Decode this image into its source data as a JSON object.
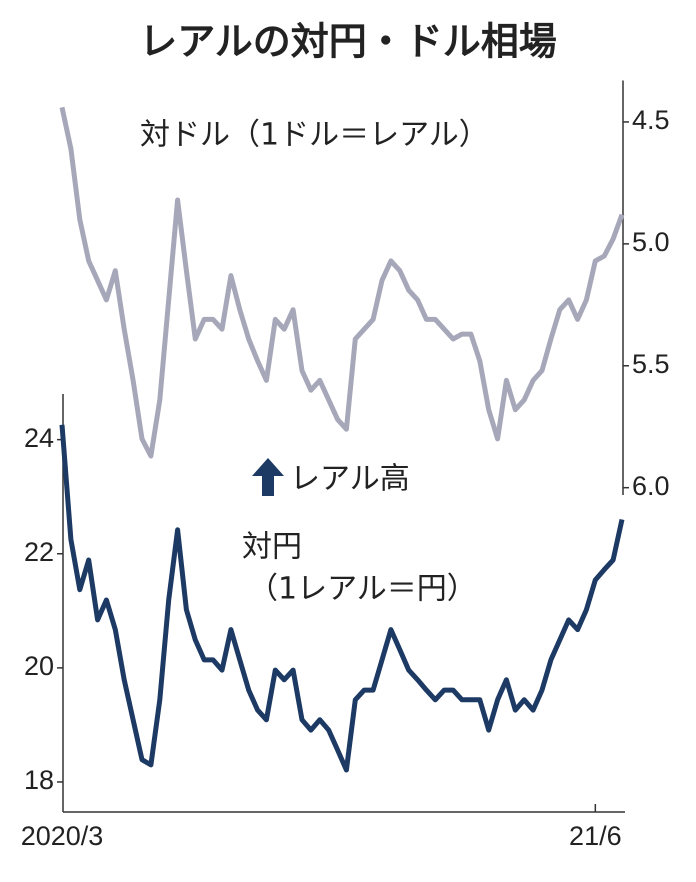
{
  "chart_data": {
    "type": "line",
    "title": "レアルの対円・ドル相場",
    "annotations": [
      "対ドル（1ドル＝レアル）",
      "レアル高",
      "対円",
      "（1レアル＝円）"
    ],
    "x": [
      "2020/3",
      null,
      null,
      null,
      null,
      null,
      null,
      null,
      null,
      null,
      null,
      null,
      null,
      null,
      null,
      null,
      null,
      null,
      null,
      null,
      null,
      null,
      null,
      null,
      null,
      null,
      null,
      null,
      null,
      null,
      null,
      null,
      null,
      null,
      null,
      null,
      null,
      null,
      null,
      null,
      null,
      null,
      null,
      null,
      null,
      null,
      null,
      null,
      null,
      null,
      null,
      null,
      null,
      null,
      null,
      null,
      null,
      null,
      null,
      null,
      "21/6",
      null,
      null,
      null
    ],
    "series": [
      {
        "name": "対ドル",
        "color": "#a6a8ba",
        "axis": "y2",
        "values": [
          4.44,
          4.61,
          4.9,
          5.07,
          5.15,
          5.23,
          5.11,
          5.35,
          5.56,
          5.8,
          5.87,
          5.64,
          5.23,
          4.82,
          5.11,
          5.39,
          5.31,
          5.31,
          5.35,
          5.13,
          5.27,
          5.39,
          5.48,
          5.56,
          5.31,
          5.35,
          5.27,
          5.52,
          5.6,
          5.56,
          5.64,
          5.72,
          5.76,
          5.39,
          5.35,
          5.31,
          5.15,
          5.07,
          5.11,
          5.19,
          5.23,
          5.31,
          5.31,
          5.35,
          5.39,
          5.37,
          5.37,
          5.48,
          5.68,
          5.8,
          5.56,
          5.68,
          5.64,
          5.56,
          5.52,
          5.39,
          5.27,
          5.23,
          5.31,
          5.23,
          5.07,
          5.05,
          4.98,
          4.88
        ]
      },
      {
        "name": "対円",
        "color": "#1d3a64",
        "values": [
          24.26,
          22.25,
          21.37,
          21.89,
          20.84,
          21.19,
          20.67,
          19.79,
          19.09,
          18.39,
          18.3,
          19.44,
          21.19,
          22.42,
          21.02,
          20.49,
          20.14,
          20.14,
          19.96,
          20.67,
          20.14,
          19.61,
          19.26,
          19.09,
          19.96,
          19.79,
          19.96,
          19.09,
          18.91,
          19.09,
          18.91,
          18.56,
          18.21,
          19.44,
          19.61,
          19.61,
          20.14,
          20.67,
          20.32,
          19.96,
          19.79,
          19.61,
          19.44,
          19.61,
          19.61,
          19.44,
          19.44,
          19.44,
          18.91,
          19.44,
          19.79,
          19.26,
          19.44,
          19.26,
          19.61,
          20.14,
          20.49,
          20.84,
          20.67,
          21.02,
          21.54,
          21.72,
          21.89,
          22.6
        ]
      }
    ],
    "ylim": [
      17.5,
      24.8
    ],
    "yticks": [
      18,
      20,
      22,
      24
    ],
    "y2lim": [
      4.33,
      6.03
    ],
    "y2ticks": [
      4.5,
      {
        "value": 5,
        "label": "5.0"
      },
      5.5,
      {
        "value": 6,
        "label": "6.0"
      }
    ],
    "y2_inverted": true
  }
}
